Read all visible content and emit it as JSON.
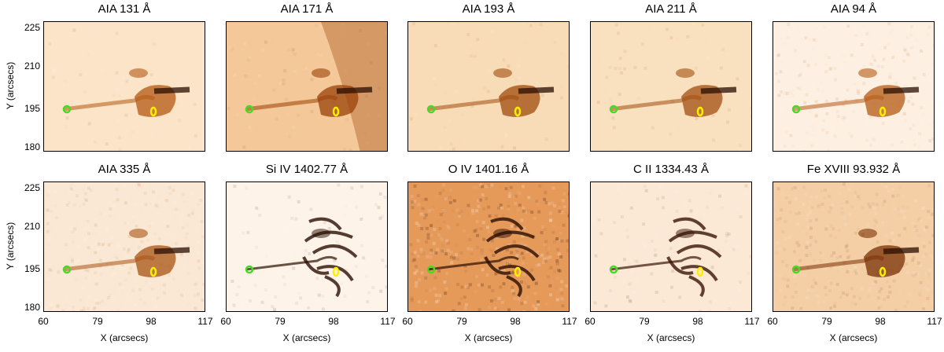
{
  "figure": {
    "panels": [
      {
        "title": "AIA 131 Å",
        "bg": "#fbe4c8",
        "tone": "#b45a14",
        "style": "aia"
      },
      {
        "title": "AIA 171 Å",
        "bg": "#f4c898",
        "tone": "#9b4208",
        "style": "aia171"
      },
      {
        "title": "AIA 193 Å",
        "bg": "#f8dcb8",
        "tone": "#a04c0c",
        "style": "aia"
      },
      {
        "title": "AIA 211 Å",
        "bg": "#f9e0bf",
        "tone": "#a24e10",
        "style": "aia"
      },
      {
        "title": "AIA 94 Å",
        "bg": "#fdf0e2",
        "tone": "#b45a14",
        "style": "noisy"
      },
      {
        "title": "AIA 335 Å",
        "bg": "#fbe8d4",
        "tone": "#a85414",
        "style": "noisy"
      },
      {
        "title": "Si IV 1402.77 Å",
        "bg": "#fdf3e8",
        "tone": "#2a0e02",
        "style": "iris"
      },
      {
        "title": "O IV 1401.16 Å",
        "bg": "#e69a5a",
        "tone": "#2a0e02",
        "style": "iris_dark"
      },
      {
        "title": "C II 1334.43 Å",
        "bg": "#fbe9d6",
        "tone": "#3a1404",
        "style": "iris"
      },
      {
        "title": "Fe XVIII 93.932 Å",
        "bg": "#f4cfa6",
        "tone": "#7a3004",
        "style": "noisy"
      }
    ],
    "x_ticks": [
      "60",
      "79",
      "98",
      "117"
    ],
    "y_ticks": [
      "225",
      "210",
      "195",
      "180"
    ],
    "x_label": "X (arcsecs)",
    "y_label": "Y (arcsecs)",
    "marker_green_color": "#44dd22",
    "marker_yellow_color": "#ffee00"
  }
}
